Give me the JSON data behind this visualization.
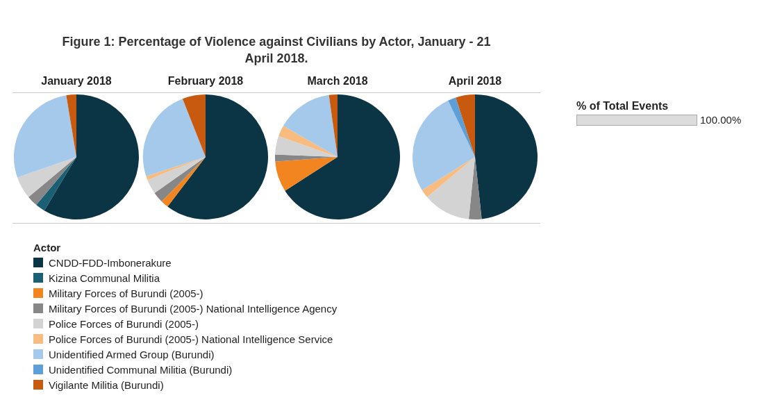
{
  "chart_data": [
    {
      "type": "pie",
      "title": "Figure 1: Percentage of Violence against Civilians by Actor, January - 21 April 2018.",
      "subtitle": "January 2018",
      "legend": "bottom",
      "legend_title": "Actor",
      "categories": [
        "CNDD-FDD-Imbonerakure",
        "Kizina Communal Militia",
        "Military Forces of Burundi (2005-)",
        "Military Forces of Burundi (2005-) National Intelligence Agency",
        "Police Forces of Burundi (2005-)",
        "Police Forces of Burundi (2005-) National Intelligence Service",
        "Unidentified Armed Group (Burundi)",
        "Unidentified Communal Militia (Burundi)",
        "Vigilante Militia (Burundi)"
      ],
      "values": [
        58.6,
        2.5,
        0,
        2.8,
        5.8,
        0,
        27.7,
        0,
        2.6
      ],
      "colors": [
        "#0b3545",
        "#1a5f74",
        "#f28520",
        "#878787",
        "#d3d3d3",
        "#f9bc80",
        "#a5c9ea",
        "#5d9fd8",
        "#c85a0f"
      ]
    },
    {
      "type": "pie",
      "subtitle": "February 2018",
      "categories": [
        null,
        null,
        null,
        null,
        null,
        null,
        null,
        null,
        null
      ],
      "values": [
        60.4,
        0,
        2.0,
        2.8,
        3.8,
        1.0,
        24.0,
        0,
        6.0
      ],
      "colors": [
        "#0b3545",
        "#1a5f74",
        "#f28520",
        "#878787",
        "#d3d3d3",
        "#f9bc80",
        "#a5c9ea",
        "#5d9fd8",
        "#c85a0f"
      ]
    },
    {
      "type": "pie",
      "subtitle": "March 2018",
      "categories": [
        null,
        null,
        null,
        null,
        null,
        null,
        null,
        null,
        null
      ],
      "values": [
        65.9,
        0,
        7.9,
        1.8,
        4.8,
        2.9,
        14.5,
        0,
        2.2
      ],
      "colors": [
        "#0b3545",
        "#1a5f74",
        "#f28520",
        "#878787",
        "#d3d3d3",
        "#f9bc80",
        "#a5c9ea",
        "#5d9fd8",
        "#c85a0f"
      ]
    },
    {
      "type": "pie",
      "subtitle": "April 2018",
      "categories": [
        null,
        null,
        null,
        null,
        null,
        null,
        null,
        null,
        null
      ],
      "values": [
        48.3,
        0,
        0,
        3.3,
        12.3,
        2.2,
        26.8,
        2.1,
        5.0
      ],
      "colors": [
        "#0b3545",
        "#1a5f74",
        "#f28520",
        "#878787",
        "#d3d3d3",
        "#f9bc80",
        "#a5c9ea",
        "#5d9fd8",
        "#c85a0f"
      ]
    },
    {
      "type": "other",
      "title": "% of Total Events",
      "annotations": [
        "100.00%"
      ]
    }
  ]
}
